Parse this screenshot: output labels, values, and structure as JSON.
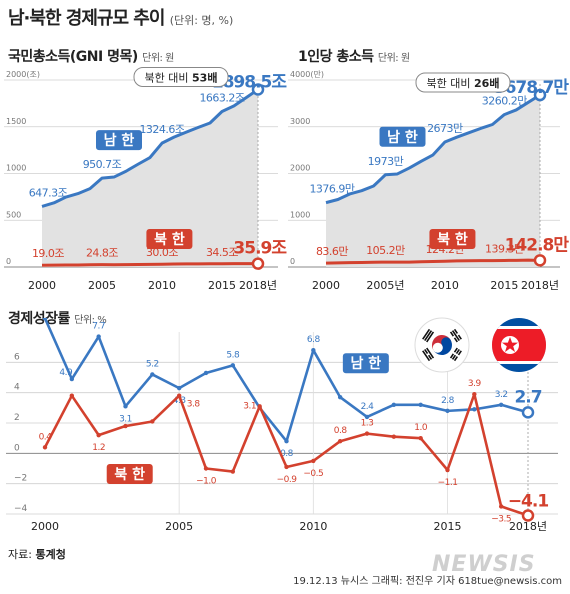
{
  "header": {
    "title": "남·북한 경제규모 추이",
    "unit": "(단위: 명, %)"
  },
  "colors": {
    "south": "#3a78c2",
    "north": "#d3412e",
    "area": "#e2e2e2",
    "grid": "#cfcfcf"
  },
  "footer": {
    "source_label": "자료:",
    "source_name": "통계청",
    "credit": "19.12.13  뉴시스 그래픽: 전진우 기자 618tue@newsis.com",
    "watermark": "NEWSIS"
  },
  "chart_data": [
    {
      "id": "gni",
      "type": "line",
      "title": "국민총소득(GNI 명목)",
      "unit": "단위: 원",
      "ylim": [
        0,
        2000
      ],
      "y_ticks": [
        0,
        500,
        1000,
        1500,
        2000
      ],
      "y_tick_labels": [
        "0",
        "500",
        "1000",
        "1500",
        "2000(조)"
      ],
      "xlim": [
        2000,
        2018
      ],
      "x_ticks": [
        2000,
        2005,
        2010,
        2015,
        2018
      ],
      "x_tick_labels": [
        "2000",
        "2005",
        "2010",
        "2015",
        "2018년"
      ],
      "callout": {
        "prefix": "북한 대비",
        "value": "53배"
      },
      "series": [
        {
          "name": "남 한",
          "color": "#3a78c2",
          "x": [
            2000,
            2001,
            2002,
            2003,
            2004,
            2005,
            2006,
            2007,
            2008,
            2009,
            2010,
            2011,
            2012,
            2013,
            2014,
            2015,
            2016,
            2017,
            2018
          ],
          "values": [
            647.3,
            686.0,
            748.0,
            785.0,
            838.0,
            950.7,
            962.0,
            1024.0,
            1099.0,
            1171.0,
            1324.6,
            1389.0,
            1441.0,
            1492.0,
            1540.0,
            1663.2,
            1723.0,
            1810.0,
            1898.5
          ],
          "labels": [
            {
              "x": 2000,
              "text": "647.3조"
            },
            {
              "x": 2005,
              "text": "950.7조"
            },
            {
              "x": 2010,
              "text": "1324.6조"
            },
            {
              "x": 2015,
              "text": "1663.2조"
            },
            {
              "x": 2018,
              "text": "1898.5조",
              "big": true
            }
          ]
        },
        {
          "name": "북 한",
          "color": "#d3412e",
          "x": [
            2000,
            2001,
            2002,
            2003,
            2004,
            2005,
            2006,
            2007,
            2008,
            2009,
            2010,
            2011,
            2012,
            2013,
            2014,
            2015,
            2016,
            2017,
            2018
          ],
          "values": [
            19.0,
            20.3,
            21.3,
            21.9,
            23.8,
            24.8,
            24.4,
            24.8,
            27.3,
            28.6,
            30.0,
            32.4,
            33.5,
            33.8,
            34.2,
            34.5,
            36.4,
            36.6,
            35.9
          ],
          "labels": [
            {
              "x": 2000,
              "text": "19.0조"
            },
            {
              "x": 2005,
              "text": "24.8조"
            },
            {
              "x": 2010,
              "text": "30.0조"
            },
            {
              "x": 2015,
              "text": "34.5조"
            },
            {
              "x": 2018,
              "text": "35.9조",
              "big": true
            }
          ]
        }
      ]
    },
    {
      "id": "per_capita",
      "type": "line",
      "title": "1인당 총소득",
      "unit": "단위: 원",
      "ylim": [
        0,
        4000
      ],
      "y_ticks": [
        0,
        1000,
        2000,
        3000,
        4000
      ],
      "y_tick_labels": [
        "0",
        "1000",
        "2000",
        "3000",
        "4000(만)"
      ],
      "xlim": [
        2000,
        2018
      ],
      "x_ticks": [
        2000,
        2005,
        2010,
        2015,
        2018
      ],
      "x_tick_labels": [
        "2000",
        "2005년",
        "2010",
        "2015",
        "2018년"
      ],
      "callout": {
        "prefix": "북한 대비",
        "value": "26배"
      },
      "series": [
        {
          "name": "남 한",
          "color": "#3a78c2",
          "x": [
            2000,
            2001,
            2002,
            2003,
            2004,
            2005,
            2006,
            2007,
            2008,
            2009,
            2010,
            2011,
            2012,
            2013,
            2014,
            2015,
            2016,
            2017,
            2018
          ],
          "values": [
            1376.9,
            1444.0,
            1562.0,
            1632.0,
            1733.0,
            1973.0,
            1990.0,
            2116.0,
            2261.0,
            2398.0,
            2673.0,
            2777.0,
            2871.0,
            2963.0,
            3048.0,
            3260.2,
            3360.0,
            3520.0,
            3678.7
          ],
          "labels": [
            {
              "x": 2000,
              "text": "1376.9만"
            },
            {
              "x": 2005,
              "text": "1973만"
            },
            {
              "x": 2010,
              "text": "2673만"
            },
            {
              "x": 2015,
              "text": "3260.2만"
            },
            {
              "x": 2018,
              "text": "3678.7만",
              "big": true
            }
          ]
        },
        {
          "name": "북 한",
          "color": "#d3412e",
          "x": [
            2000,
            2001,
            2002,
            2003,
            2004,
            2005,
            2006,
            2007,
            2008,
            2009,
            2010,
            2011,
            2012,
            2013,
            2014,
            2015,
            2016,
            2017,
            2018
          ],
          "values": [
            83.6,
            89.0,
            93.0,
            95.0,
            101.0,
            105.2,
            103.0,
            104.0,
            113.0,
            118.0,
            124.2,
            131.0,
            135.0,
            136.0,
            137.5,
            139.3,
            143.0,
            146.0,
            142.8
          ],
          "labels": [
            {
              "x": 2000,
              "text": "83.6만"
            },
            {
              "x": 2005,
              "text": "105.2만"
            },
            {
              "x": 2010,
              "text": "124.2만"
            },
            {
              "x": 2015,
              "text": "139.3만"
            },
            {
              "x": 2018,
              "text": "142.8만",
              "big": true
            }
          ]
        }
      ]
    },
    {
      "id": "growth",
      "type": "line",
      "title": "경제성장률",
      "unit": "단위: %",
      "ylim": [
        -4,
        8
      ],
      "y_ticks": [
        -4,
        -2,
        0,
        2,
        4,
        6
      ],
      "y_tick_labels": [
        "−4",
        "−2",
        "0",
        "2",
        "4",
        "6"
      ],
      "xlim": [
        2000,
        2018
      ],
      "x_ticks": [
        2000,
        2005,
        2010,
        2015,
        2018
      ],
      "x_tick_labels": [
        "2000",
        "2005",
        "2010",
        "2015",
        "2018년"
      ],
      "series": [
        {
          "name": "남 한",
          "color": "#3a78c2",
          "x": [
            2000,
            2001,
            2002,
            2003,
            2004,
            2005,
            2006,
            2007,
            2008,
            2009,
            2010,
            2011,
            2012,
            2013,
            2014,
            2015,
            2016,
            2017,
            2018
          ],
          "values": [
            8.9,
            4.9,
            7.7,
            3.1,
            5.2,
            4.3,
            5.3,
            5.8,
            3.0,
            0.8,
            6.8,
            3.7,
            2.4,
            3.2,
            3.2,
            2.8,
            2.9,
            3.2,
            2.7
          ],
          "labels": [
            {
              "x": 2001,
              "text": "4.9"
            },
            {
              "x": 2002,
              "text": "7.7"
            },
            {
              "x": 2003,
              "text": "3.1"
            },
            {
              "x": 2004,
              "text": "5.2"
            },
            {
              "x": 2005,
              "text": "4.3"
            },
            {
              "x": 2007,
              "text": "5.8"
            },
            {
              "x": 2009,
              "text": "0.8"
            },
            {
              "x": 2010,
              "text": "6.8"
            },
            {
              "x": 2012,
              "text": "2.4"
            },
            {
              "x": 2015,
              "text": "2.8"
            },
            {
              "x": 2017,
              "text": "3.2"
            },
            {
              "x": 2018,
              "text": "2.7",
              "big": true
            }
          ]
        },
        {
          "name": "북 한",
          "color": "#d3412e",
          "x": [
            2000,
            2001,
            2002,
            2003,
            2004,
            2005,
            2006,
            2007,
            2008,
            2009,
            2010,
            2011,
            2012,
            2013,
            2014,
            2015,
            2016,
            2017,
            2018
          ],
          "values": [
            0.4,
            3.8,
            1.2,
            1.8,
            2.1,
            3.8,
            -1.0,
            -1.2,
            3.1,
            -0.9,
            -0.5,
            0.8,
            1.3,
            1.1,
            1.0,
            -1.1,
            3.9,
            -3.5,
            -4.1
          ],
          "labels": [
            {
              "x": 2000,
              "text": "0.4"
            },
            {
              "x": 2002,
              "text": "1.2"
            },
            {
              "x": 2005,
              "text": "3.8"
            },
            {
              "x": 2006,
              "text": "−1.0"
            },
            {
              "x": 2008,
              "text": "3.1"
            },
            {
              "x": 2009,
              "text": "−0.9"
            },
            {
              "x": 2010,
              "text": "−0.5"
            },
            {
              "x": 2011,
              "text": "0.8"
            },
            {
              "x": 2012,
              "text": "1.3"
            },
            {
              "x": 2014,
              "text": "1.0"
            },
            {
              "x": 2015,
              "text": "−1.1"
            },
            {
              "x": 2016,
              "text": "3.9"
            },
            {
              "x": 2017,
              "text": "−3.5"
            },
            {
              "x": 2018,
              "text": "−4.1",
              "big": true
            }
          ]
        }
      ]
    }
  ]
}
